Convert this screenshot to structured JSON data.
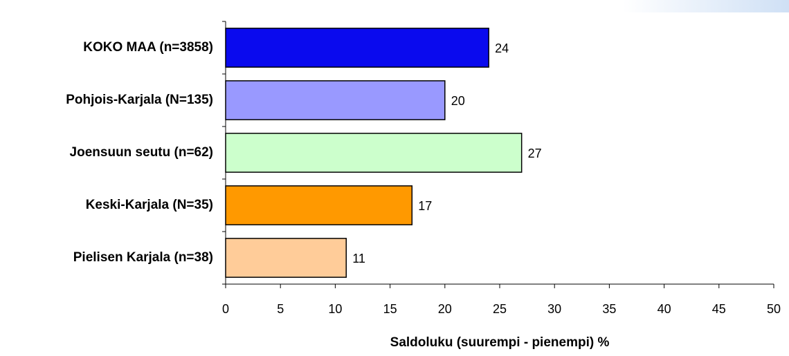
{
  "chart_data": {
    "type": "bar",
    "orientation": "horizontal",
    "categories": [
      "KOKO MAA (n=3858)",
      "Pohjois-Karjala (N=135)",
      "Joensuun seutu (n=62)",
      "Keski-Karjala (N=35)",
      "Pielisen Karjala (n=38)"
    ],
    "values": [
      24,
      20,
      27,
      17,
      11
    ],
    "colors": [
      "#0a0aee",
      "#9999ff",
      "#ccffcc",
      "#ff9900",
      "#ffcc99"
    ],
    "x_label": "Saldoluku (suurempi - pienempi) %",
    "xlim": [
      0,
      50
    ],
    "xticks": [
      0,
      5,
      10,
      15,
      20,
      25,
      30,
      35,
      40,
      45,
      50
    ],
    "grid": false
  }
}
